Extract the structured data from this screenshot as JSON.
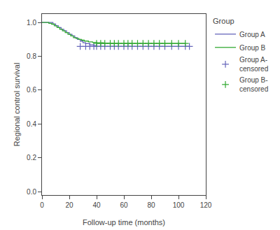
{
  "chart_data": {
    "type": "line",
    "title": "",
    "xlabel": "Follow-up time (months)",
    "ylabel": "Regional control survival",
    "xlim": [
      0,
      120
    ],
    "ylim": [
      -0.02,
      1.05
    ],
    "xticks": [
      0,
      20,
      40,
      60,
      80,
      100,
      120
    ],
    "yticks": [
      {
        "value": 0.0,
        "label": "0.0"
      },
      0.2,
      0.4,
      0.6,
      0.8,
      {
        "value": 1.0,
        "label": "1.0"
      }
    ],
    "grid": false,
    "legend": "right",
    "legend_title": "Group",
    "series": [
      {
        "name": "Group A",
        "type": "line",
        "line_style": "step",
        "color": "#6666bb",
        "x": [
          0,
          5,
          8,
          10,
          12,
          14,
          16,
          18,
          20,
          22,
          24,
          26,
          28,
          30,
          32,
          35,
          38,
          40,
          45,
          50,
          55,
          60,
          65,
          70,
          75,
          80,
          85,
          90,
          95,
          100,
          105,
          108
        ],
        "values": [
          1.0,
          1.0,
          0.99,
          0.98,
          0.97,
          0.96,
          0.95,
          0.94,
          0.93,
          0.92,
          0.91,
          0.9,
          0.89,
          0.88,
          0.875,
          0.868,
          0.862,
          0.858,
          0.858,
          0.858,
          0.858,
          0.858,
          0.858,
          0.858,
          0.858,
          0.858,
          0.858,
          0.858,
          0.858,
          0.858,
          0.858,
          0.858
        ]
      },
      {
        "name": "Group B",
        "type": "line",
        "line_style": "step",
        "color": "#33aa33",
        "x": [
          0,
          3,
          5,
          7,
          9,
          11,
          13,
          15,
          17,
          19,
          21,
          23,
          25,
          27,
          29,
          31,
          34,
          37,
          40,
          45,
          50,
          55,
          60,
          65,
          70,
          75,
          80,
          85,
          90,
          95,
          100,
          105
        ],
        "values": [
          1.0,
          1.0,
          0.995,
          0.99,
          0.98,
          0.97,
          0.96,
          0.95,
          0.94,
          0.93,
          0.92,
          0.91,
          0.905,
          0.9,
          0.895,
          0.89,
          0.885,
          0.882,
          0.88,
          0.878,
          0.876,
          0.876,
          0.876,
          0.876,
          0.876,
          0.876,
          0.876,
          0.876,
          0.876,
          0.876,
          0.876,
          0.876
        ]
      },
      {
        "name": "Group A-\ncensored",
        "type": "scatter",
        "marker": "plus",
        "color": "#6666bb",
        "x": [
          28,
          32,
          35,
          38,
          40,
          43,
          46,
          50,
          53,
          56,
          60,
          63,
          66,
          70,
          74,
          78,
          82,
          86,
          90,
          95,
          100,
          105,
          108
        ],
        "values": [
          0.858,
          0.858,
          0.858,
          0.858,
          0.858,
          0.858,
          0.858,
          0.858,
          0.858,
          0.858,
          0.858,
          0.858,
          0.858,
          0.858,
          0.858,
          0.858,
          0.858,
          0.858,
          0.858,
          0.858,
          0.858,
          0.858,
          0.858
        ]
      },
      {
        "name": "Group B-\ncensored",
        "type": "scatter",
        "marker": "plus",
        "color": "#33aa33",
        "x": [
          40,
          43,
          46,
          50,
          53,
          56,
          60,
          63,
          66,
          70,
          74,
          78,
          82,
          86,
          90,
          95,
          100,
          105
        ],
        "values": [
          0.876,
          0.876,
          0.876,
          0.876,
          0.876,
          0.876,
          0.876,
          0.876,
          0.876,
          0.876,
          0.876,
          0.876,
          0.876,
          0.876,
          0.876,
          0.876,
          0.876,
          0.876
        ]
      }
    ]
  }
}
